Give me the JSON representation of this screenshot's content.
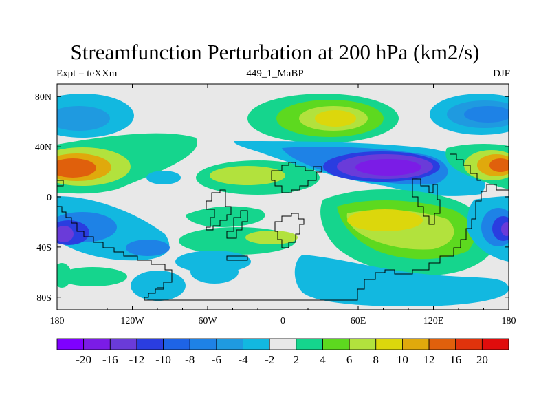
{
  "title": "Streamfunction Perturbation at 200 hPa (km2/s)",
  "left_label": "Expt = teXXm",
  "center_label": "449_1_MaBP",
  "right_label": "DJF",
  "map": {
    "lon_ticks": [
      "180",
      "120W",
      "60W",
      "0",
      "60E",
      "120E",
      "180"
    ],
    "lat_ticks": [
      "80N",
      "40N",
      "0",
      "40S",
      "80S"
    ],
    "background_color": "#e8e8e8"
  },
  "colorbar": {
    "colors": [
      "#7f00ff",
      "#7b1ce6",
      "#6a3bd9",
      "#2a3de0",
      "#1e64e6",
      "#1e82e6",
      "#1f9ae0",
      "#12b8e0",
      "#e8e8e8",
      "#15d58d",
      "#5dd91f",
      "#b2e23d",
      "#dcd70c",
      "#e0a90c",
      "#e0600c",
      "#e0330c",
      "#e00c0c"
    ],
    "labels": [
      "-20",
      "-16",
      "-12",
      "-10",
      "-8",
      "-6",
      "-4",
      "-2",
      "2",
      "4",
      "6",
      "8",
      "10",
      "12",
      "16",
      "20"
    ]
  }
}
